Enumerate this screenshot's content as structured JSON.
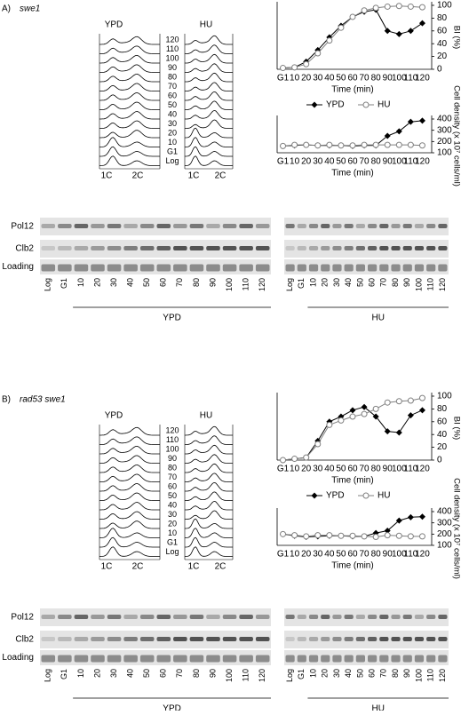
{
  "panels": [
    {
      "label": "A)",
      "strain": "swe1",
      "flow": {
        "columns": [
          "YPD",
          "HU"
        ],
        "rows": [
          "120",
          "110",
          "100",
          "90",
          "80",
          "70",
          "60",
          "50",
          "40",
          "30",
          "20",
          "10",
          "G1",
          "Log"
        ],
        "peaks": [
          "1C",
          "2C"
        ]
      },
      "blot": {
        "rows": [
          "Pol12",
          "Clb2",
          "Loading"
        ],
        "groups": [
          {
            "name": "YPD",
            "lanes": [
              "Log",
              "G1",
              "10",
              "20",
              "30",
              "40",
              "50",
              "60",
              "70",
              "80",
              "90",
              "100",
              "110",
              "120"
            ]
          },
          {
            "name": "HU",
            "lanes": [
              "Log",
              "G1",
              "10",
              "20",
              "30",
              "40",
              "50",
              "60",
              "70",
              "80",
              "90",
              "100",
              "110",
              "120"
            ]
          }
        ]
      }
    },
    {
      "label": "B)",
      "strain": "rad53 swe1",
      "flow": {
        "columns": [
          "YPD",
          "HU"
        ],
        "rows": [
          "120",
          "110",
          "100",
          "90",
          "80",
          "70",
          "60",
          "50",
          "40",
          "30",
          "20",
          "10",
          "G1",
          "Log"
        ],
        "peaks": [
          "1C",
          "2C"
        ]
      },
      "blot": {
        "rows": [
          "Pol12",
          "Clb2",
          "Loading"
        ],
        "groups": [
          {
            "name": "YPD",
            "lanes": [
              "Log",
              "G1",
              "10",
              "20",
              "30",
              "40",
              "50",
              "60",
              "70",
              "80",
              "90",
              "100",
              "110",
              "120"
            ]
          },
          {
            "name": "HU",
            "lanes": [
              "Log",
              "G1",
              "10",
              "20",
              "30",
              "40",
              "50",
              "60",
              "70",
              "80",
              "90",
              "100",
              "110",
              "120"
            ]
          }
        ]
      }
    }
  ],
  "chart_data": [
    {
      "type": "line",
      "xlabel": "Time (min)",
      "ylabel": "BI (%)",
      "yaxis": "right",
      "legend": true,
      "categories": [
        "G1",
        "10",
        "20",
        "30",
        "40",
        "50",
        "60",
        "70",
        "80",
        "90",
        "100",
        "110",
        "120"
      ],
      "series": [
        {
          "name": "YPD",
          "color": "#000000",
          "marker": "filled-diamond",
          "values": [
            2,
            3,
            12,
            30,
            50,
            68,
            82,
            90,
            93,
            60,
            55,
            60,
            72
          ]
        },
        {
          "name": "HU",
          "color": "#808080",
          "marker": "open-circle",
          "values": [
            2,
            3,
            8,
            25,
            45,
            65,
            82,
            92,
            96,
            98,
            99,
            98,
            97
          ]
        }
      ],
      "ylim": [
        0,
        100
      ],
      "yticks": [
        0,
        20,
        40,
        60,
        80,
        100
      ]
    },
    {
      "type": "line",
      "xlabel": "Time (min)",
      "ylabel": "Cell density (x 10⁷ cells/ml)",
      "yaxis": "right",
      "legend": false,
      "categories": [
        "G1",
        "10",
        "20",
        "30",
        "40",
        "50",
        "60",
        "70",
        "80",
        "90",
        "100",
        "110",
        "120"
      ],
      "series": [
        {
          "color": "#000000",
          "marker": "filled-diamond",
          "values": [
            160,
            165,
            170,
            165,
            165,
            165,
            160,
            165,
            165,
            250,
            290,
            375,
            385
          ]
        },
        {
          "color": "#808080",
          "marker": "open-circle",
          "values": [
            160,
            170,
            170,
            165,
            170,
            165,
            165,
            170,
            170,
            170,
            170,
            170,
            165
          ]
        }
      ],
      "ylim": [
        100,
        400
      ],
      "yticks": [
        100,
        200,
        300,
        400
      ]
    },
    {
      "type": "line",
      "xlabel": "Time (min)",
      "ylabel": "BI (%)",
      "yaxis": "right",
      "legend": true,
      "categories": [
        "G1",
        "10",
        "20",
        "30",
        "40",
        "50",
        "60",
        "70",
        "80",
        "90",
        "100",
        "110",
        "120"
      ],
      "series": [
        {
          "name": "YPD",
          "color": "#000000",
          "marker": "filled-diamond",
          "values": [
            0,
            2,
            4,
            30,
            60,
            68,
            78,
            83,
            68,
            45,
            43,
            70,
            78
          ]
        },
        {
          "name": "HU",
          "color": "#808080",
          "marker": "open-circle",
          "values": [
            0,
            2,
            4,
            25,
            55,
            62,
            68,
            72,
            80,
            90,
            92,
            93,
            97
          ]
        }
      ],
      "ylim": [
        0,
        100
      ],
      "yticks": [
        0,
        20,
        40,
        60,
        80,
        100
      ]
    },
    {
      "type": "line",
      "xlabel": "Time (min)",
      "ylabel": "Cell density (x 10⁷ cells/ml)",
      "yaxis": "right",
      "legend": false,
      "categories": [
        "G1",
        "10",
        "20",
        "30",
        "40",
        "50",
        "60",
        "70",
        "80",
        "90",
        "100",
        "110",
        "120"
      ],
      "series": [
        {
          "color": "#000000",
          "marker": "filled-diamond",
          "values": [
            200,
            185,
            175,
            180,
            185,
            185,
            180,
            180,
            210,
            230,
            320,
            350,
            355
          ]
        },
        {
          "color": "#808080",
          "marker": "open-circle",
          "values": [
            200,
            190,
            180,
            190,
            190,
            185,
            185,
            180,
            175,
            190,
            185,
            180,
            180
          ]
        }
      ],
      "ylim": [
        100,
        400
      ],
      "yticks": [
        100,
        200,
        300,
        400
      ]
    }
  ]
}
